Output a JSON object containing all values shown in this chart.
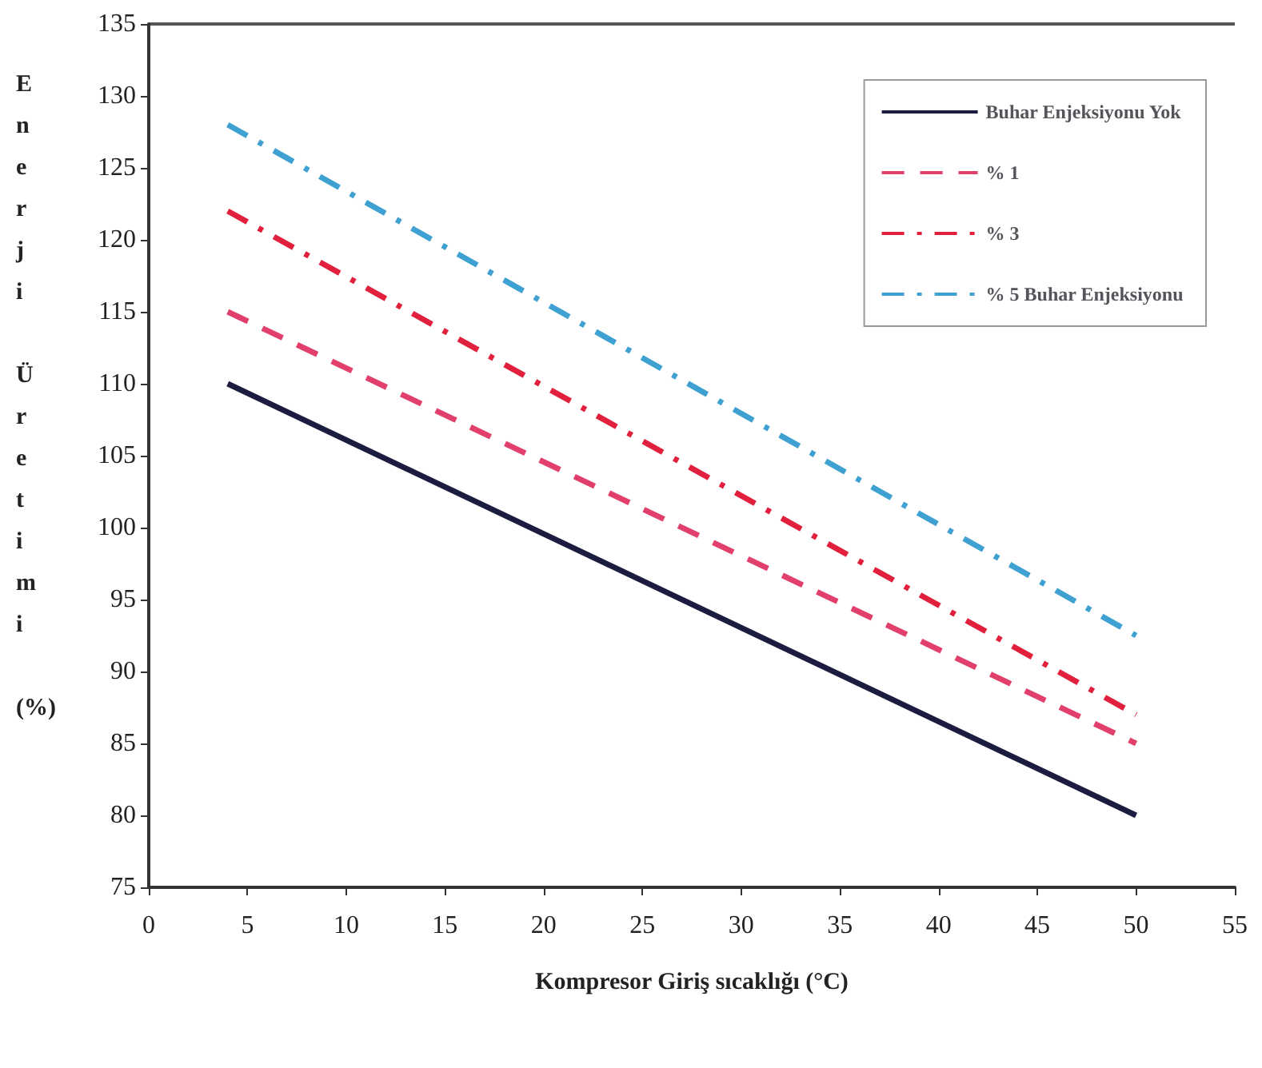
{
  "chart_data": {
    "type": "line",
    "xlabel": "Kompresor Giriş sıcaklığı (°C)",
    "ylabel": "Enerji Üretimi (%)",
    "x": [
      4,
      50
    ],
    "series": [
      {
        "name": "Buhar Enjeksiyonu Yok",
        "color": "#1c1c40",
        "values": [
          110,
          80
        ],
        "line_style": "solid"
      },
      {
        "name": "% 1",
        "color": "#e2406c",
        "values": [
          115,
          85
        ],
        "line_style": "dashed"
      },
      {
        "name": "% 3",
        "color": "#e0203c",
        "values": [
          122,
          87
        ],
        "line_style": "dashdot"
      },
      {
        "name": "% 5 Buhar Enjeksiyonu",
        "color": "#3fa0d2",
        "values": [
          128,
          92.5
        ],
        "line_style": "dashdot"
      }
    ],
    "xlim": [
      0,
      55
    ],
    "xticks": [
      0,
      5,
      10,
      15,
      20,
      25,
      30,
      35,
      40,
      45,
      50,
      55
    ],
    "ylim": [
      75,
      135
    ],
    "yticks": [
      75,
      80,
      85,
      90,
      95,
      100,
      105,
      110,
      115,
      120,
      125,
      130,
      135
    ],
    "grid": false,
    "legend": "top right",
    "marker": "none"
  }
}
